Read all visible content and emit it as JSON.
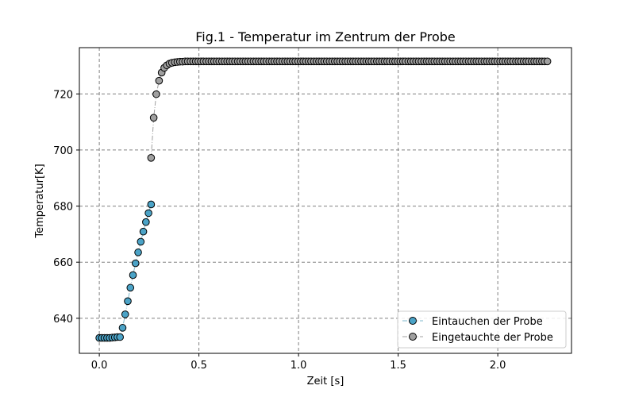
{
  "chart_data": {
    "type": "scatter",
    "title": "Fig.1 - Temperatur im Zentrum der Probe",
    "xlabel": "Zeit [s]",
    "ylabel": "Temperatur[K]",
    "xlim": [
      -0.1,
      2.37
    ],
    "ylim": [
      627.5,
      736.5
    ],
    "xticks": [
      0.0,
      0.5,
      1.0,
      1.5,
      2.0
    ],
    "xtick_labels": [
      "0.0",
      "0.5",
      "1.0",
      "1.5",
      "2.0"
    ],
    "yticks": [
      640,
      660,
      680,
      700,
      720
    ],
    "ytick_labels": [
      "640",
      "660",
      "680",
      "700",
      "720"
    ],
    "grid": true,
    "legend_position": "bottom-right",
    "series": [
      {
        "name": "Eintauchen der Probe",
        "color": "#4ba3c7",
        "line_color": "#7fb9cc",
        "x": [
          0.0,
          0.013,
          0.026,
          0.039,
          0.052,
          0.065,
          0.078,
          0.091,
          0.104,
          0.117,
          0.13,
          0.143,
          0.156,
          0.169,
          0.182,
          0.195,
          0.208,
          0.221,
          0.234,
          0.247,
          0.26
        ],
        "y": [
          633.0,
          633.0,
          633.0,
          633.0,
          633.0,
          633.1,
          633.2,
          633.3,
          633.3,
          636.6,
          641.4,
          646.1,
          650.9,
          655.4,
          659.6,
          663.5,
          667.3,
          670.9,
          674.3,
          677.5,
          680.6
        ]
      },
      {
        "name": "Eingetauchte der Probe",
        "color": "#a0a0a0",
        "line_color": "#a0a0a0",
        "note_x_start": 0.26,
        "x": [],
        "y": []
      }
    ]
  }
}
